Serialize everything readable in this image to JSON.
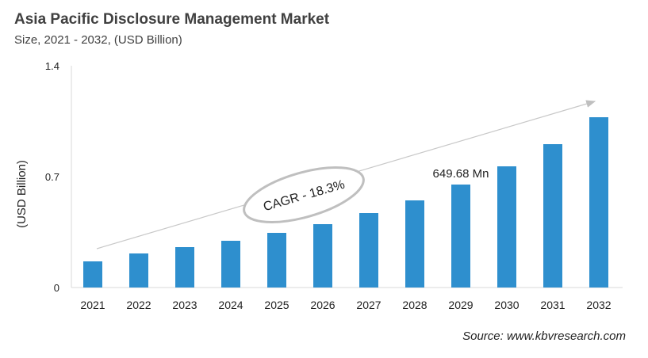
{
  "title": "Asia Pacific Disclosure Management Market",
  "subtitle": "Size, 2021 - 2032, (USD Billion)",
  "source": "Source: www.kbvresearch.com",
  "chart_data": {
    "type": "bar",
    "categories": [
      "2021",
      "2022",
      "2023",
      "2024",
      "2025",
      "2026",
      "2027",
      "2028",
      "2029",
      "2030",
      "2031",
      "2032"
    ],
    "values": [
      0.165,
      0.215,
      0.255,
      0.295,
      0.345,
      0.4,
      0.47,
      0.55,
      0.65,
      0.765,
      0.905,
      1.075
    ],
    "ylabel": "(USD Billion)",
    "ylim": [
      0,
      1.4
    ],
    "yticks": [
      "0",
      "0.7",
      "1.4"
    ],
    "grid": false,
    "bar_color": "#2e8fce",
    "annotations": {
      "cagr": "CAGR - 18.3%",
      "data_label": "649.68 Mn",
      "data_label_category": "2029"
    }
  }
}
